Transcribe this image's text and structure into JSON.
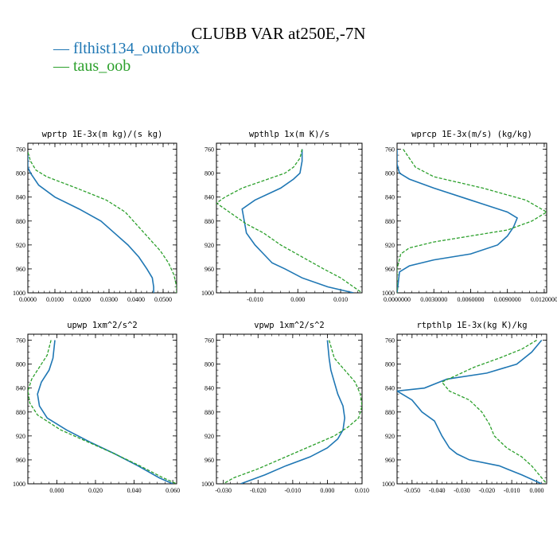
{
  "figure": {
    "title": "CLUBB VAR at250E,-7N"
  },
  "legend": [
    {
      "label": "— flthist134_outofbox",
      "color": "#1f77b4"
    },
    {
      "label": "— taus_oob",
      "color": "#2ca02c"
    }
  ],
  "colors": {
    "series_1": "#1f77b4",
    "series_2": "#2ca02c"
  },
  "chart_data": [
    {
      "type": "line",
      "title": "wprtp  1E-3x(m kg)/(s kg)",
      "xlim": [
        0.0,
        0.055
      ],
      "ylim": [
        1000,
        750
      ],
      "y_inverted": true,
      "xticks": [
        0.0,
        0.01,
        0.02,
        0.03,
        0.04,
        0.05
      ],
      "xticklabels": [
        "0.0000",
        "0.0100",
        "0.0200",
        "0.0300",
        "0.0400",
        "0.0500"
      ],
      "yticks": [
        760,
        800,
        840,
        880,
        920,
        960,
        1000
      ],
      "yticklabels": [
        "760",
        "800",
        "840",
        "880",
        "920",
        "960",
        "1000"
      ],
      "series": [
        {
          "name": "flthist134_outofbox",
          "points": [
            [
              0.0,
              765
            ],
            [
              0.0,
              790
            ],
            [
              0.001,
              800
            ],
            [
              0.004,
              820
            ],
            [
              0.01,
              840
            ],
            [
              0.019,
              860
            ],
            [
              0.027,
              880
            ],
            [
              0.032,
              900
            ],
            [
              0.037,
              920
            ],
            [
              0.041,
              940
            ],
            [
              0.044,
              960
            ],
            [
              0.046,
              975
            ],
            [
              0.0465,
              990
            ],
            [
              0.0465,
              1000
            ]
          ]
        },
        {
          "name": "taus_oob",
          "points": [
            [
              0.0,
              765
            ],
            [
              0.001,
              780
            ],
            [
              0.003,
              795
            ],
            [
              0.007,
              806
            ],
            [
              0.018,
              825
            ],
            [
              0.029,
              845
            ],
            [
              0.036,
              865
            ],
            [
              0.041,
              890
            ],
            [
              0.045,
              910
            ],
            [
              0.049,
              930
            ],
            [
              0.052,
              950
            ],
            [
              0.054,
              970
            ],
            [
              0.055,
              990
            ],
            [
              0.055,
              1000
            ]
          ]
        }
      ]
    },
    {
      "type": "line",
      "title": "wpthlp  1x(m K)/s",
      "xlim": [
        -0.019,
        0.015
      ],
      "ylim": [
        1000,
        750
      ],
      "y_inverted": true,
      "xticks": [
        -0.01,
        0.0,
        0.01
      ],
      "xticklabels": [
        "-0.010",
        "0.000",
        "0.010"
      ],
      "yticks": [
        760,
        800,
        840,
        880,
        920,
        960,
        1000
      ],
      "yticklabels": [
        "760",
        "800",
        "840",
        "880",
        "920",
        "960",
        "1000"
      ],
      "series": [
        {
          "name": "flthist134_outofbox",
          "points": [
            [
              0.001,
              760
            ],
            [
              0.001,
              780
            ],
            [
              0.0005,
              800
            ],
            [
              -0.001,
              810
            ],
            [
              -0.004,
              825
            ],
            [
              -0.01,
              845
            ],
            [
              -0.013,
              860
            ],
            [
              -0.0125,
              880
            ],
            [
              -0.012,
              900
            ],
            [
              -0.01,
              920
            ],
            [
              -0.008,
              935
            ],
            [
              -0.006,
              950
            ],
            [
              -0.003,
              960
            ],
            [
              0.001,
              975
            ],
            [
              0.007,
              990
            ],
            [
              0.013,
              1000
            ]
          ]
        },
        {
          "name": "taus_oob",
          "points": [
            [
              0.001,
              760
            ],
            [
              0.0005,
              775
            ],
            [
              -0.001,
              790
            ],
            [
              -0.003,
              800
            ],
            [
              -0.007,
              810
            ],
            [
              -0.013,
              825
            ],
            [
              -0.017,
              840
            ],
            [
              -0.019,
              850
            ],
            [
              -0.016,
              865
            ],
            [
              -0.012,
              885
            ],
            [
              -0.008,
              900
            ],
            [
              -0.004,
              920
            ],
            [
              0.001,
              940
            ],
            [
              0.006,
              960
            ],
            [
              0.01,
              975
            ],
            [
              0.015,
              1000
            ]
          ]
        }
      ]
    },
    {
      "type": "line",
      "title": "wprcp  1E-3x(m/s) (kg/kg)",
      "xlim": [
        0.0,
        0.0122
      ],
      "ylim": [
        1000,
        750
      ],
      "y_inverted": true,
      "xticks": [
        0.0,
        0.003,
        0.006,
        0.009,
        0.012
      ],
      "xticklabels": [
        "0.0000000",
        "0.0030000",
        "0.0060000",
        "0.0090000",
        "0.0120000"
      ],
      "yticks": [
        760,
        800,
        840,
        880,
        920,
        960,
        1000
      ],
      "yticklabels": [
        "760",
        "800",
        "840",
        "880",
        "920",
        "960",
        "1000"
      ],
      "series": [
        {
          "name": "flthist134_outofbox",
          "points": [
            [
              0.0,
              760
            ],
            [
              0.0,
              785
            ],
            [
              0.0002,
              800
            ],
            [
              0.001,
              810
            ],
            [
              0.003,
              825
            ],
            [
              0.006,
              845
            ],
            [
              0.009,
              865
            ],
            [
              0.0098,
              875
            ],
            [
              0.0095,
              890
            ],
            [
              0.009,
              905
            ],
            [
              0.0082,
              920
            ],
            [
              0.006,
              935
            ],
            [
              0.003,
              945
            ],
            [
              0.001,
              955
            ],
            [
              0.0002,
              965
            ],
            [
              0.0,
              1000
            ]
          ]
        },
        {
          "name": "taus_oob",
          "points": [
            [
              0.0005,
              760
            ],
            [
              0.001,
              775
            ],
            [
              0.0015,
              790
            ],
            [
              0.003,
              806
            ],
            [
              0.007,
              825
            ],
            [
              0.0105,
              845
            ],
            [
              0.0122,
              865
            ],
            [
              0.011,
              880
            ],
            [
              0.009,
              895
            ],
            [
              0.006,
              905
            ],
            [
              0.003,
              915
            ],
            [
              0.001,
              925
            ],
            [
              0.0003,
              935
            ],
            [
              0.0,
              960
            ],
            [
              0.0,
              1000
            ]
          ]
        }
      ]
    },
    {
      "type": "line",
      "title": "upwp  1xm^2/s^2",
      "xlim": [
        -0.015,
        0.062
      ],
      "ylim": [
        1000,
        750
      ],
      "y_inverted": true,
      "xticks": [
        0.0,
        0.02,
        0.04,
        0.06
      ],
      "xticklabels": [
        "0.000",
        "0.020",
        "0.040",
        "0.060"
      ],
      "yticks": [
        760,
        800,
        840,
        880,
        920,
        960,
        1000
      ],
      "yticklabels": [
        "760",
        "800",
        "840",
        "880",
        "920",
        "960",
        "1000"
      ],
      "series": [
        {
          "name": "flthist134_outofbox",
          "points": [
            [
              -0.001,
              760
            ],
            [
              -0.002,
              790
            ],
            [
              -0.004,
              810
            ],
            [
              -0.008,
              830
            ],
            [
              -0.01,
              850
            ],
            [
              -0.009,
              870
            ],
            [
              -0.005,
              890
            ],
            [
              0.005,
              910
            ],
            [
              0.017,
              930
            ],
            [
              0.03,
              950
            ],
            [
              0.042,
              970
            ],
            [
              0.053,
              990
            ],
            [
              0.06,
              1000
            ]
          ]
        },
        {
          "name": "taus_oob",
          "points": [
            [
              -0.003,
              760
            ],
            [
              -0.005,
              785
            ],
            [
              -0.009,
              805
            ],
            [
              -0.013,
              825
            ],
            [
              -0.015,
              845
            ],
            [
              -0.014,
              865
            ],
            [
              -0.01,
              885
            ],
            [
              0.002,
              910
            ],
            [
              0.016,
              930
            ],
            [
              0.03,
              950
            ],
            [
              0.043,
              970
            ],
            [
              0.055,
              990
            ],
            [
              0.062,
              1000
            ]
          ]
        }
      ]
    },
    {
      "type": "line",
      "title": "vpwp  1xm^2/s^2",
      "xlim": [
        -0.032,
        0.01
      ],
      "ylim": [
        1000,
        750
      ],
      "y_inverted": true,
      "xticks": [
        -0.03,
        -0.02,
        -0.01,
        0.0,
        0.01
      ],
      "xticklabels": [
        "-0.030",
        "-0.020",
        "-0.010",
        "0.000",
        "0.010"
      ],
      "yticks": [
        760,
        800,
        840,
        880,
        920,
        960,
        1000
      ],
      "yticklabels": [
        "760",
        "800",
        "840",
        "880",
        "920",
        "960",
        "1000"
      ],
      "series": [
        {
          "name": "flthist134_outofbox",
          "points": [
            [
              0.0,
              760
            ],
            [
              0.0005,
              790
            ],
            [
              0.001,
              810
            ],
            [
              0.002,
              830
            ],
            [
              0.003,
              850
            ],
            [
              0.0045,
              870
            ],
            [
              0.005,
              890
            ],
            [
              0.0045,
              910
            ],
            [
              0.003,
              925
            ],
            [
              0.0,
              940
            ],
            [
              -0.005,
              955
            ],
            [
              -0.012,
              970
            ],
            [
              -0.018,
              985
            ],
            [
              -0.025,
              1000
            ]
          ]
        },
        {
          "name": "taus_oob",
          "points": [
            [
              0.0005,
              760
            ],
            [
              0.002,
              790
            ],
            [
              0.005,
              810
            ],
            [
              0.008,
              830
            ],
            [
              0.0095,
              850
            ],
            [
              0.01,
              870
            ],
            [
              0.009,
              890
            ],
            [
              0.006,
              905
            ],
            [
              0.002,
              920
            ],
            [
              -0.004,
              935
            ],
            [
              -0.012,
              955
            ],
            [
              -0.02,
              975
            ],
            [
              -0.027,
              990
            ],
            [
              -0.03,
              1000
            ]
          ]
        }
      ]
    },
    {
      "type": "line",
      "title": "rtpthlp  1E-3x(kg K)/kg",
      "xlim": [
        -0.056,
        0.004
      ],
      "ylim": [
        1000,
        750
      ],
      "y_inverted": true,
      "xticks": [
        -0.05,
        -0.04,
        -0.03,
        -0.02,
        -0.01,
        0.0
      ],
      "xticklabels": [
        "-0.050",
        "-0.040",
        "-0.030",
        "-0.020",
        "-0.010",
        "0.000"
      ],
      "yticks": [
        760,
        800,
        840,
        880,
        920,
        960,
        1000
      ],
      "yticklabels": [
        "760",
        "800",
        "840",
        "880",
        "920",
        "960",
        "1000"
      ],
      "series": [
        {
          "name": "flthist134_outofbox",
          "points": [
            [
              0.002,
              760
            ],
            [
              -0.002,
              780
            ],
            [
              -0.008,
              800
            ],
            [
              -0.02,
              815
            ],
            [
              -0.036,
              825
            ],
            [
              -0.045,
              840
            ],
            [
              -0.056,
              845
            ],
            [
              -0.05,
              860
            ],
            [
              -0.046,
              880
            ],
            [
              -0.041,
              895
            ],
            [
              -0.038,
              920
            ],
            [
              -0.035,
              940
            ],
            [
              -0.032,
              950
            ],
            [
              -0.027,
              960
            ],
            [
              -0.015,
              970
            ],
            [
              -0.006,
              985
            ],
            [
              0.002,
              1000
            ]
          ]
        },
        {
          "name": "taus_oob",
          "points": [
            [
              0.0,
              760
            ],
            [
              -0.006,
              775
            ],
            [
              -0.015,
              790
            ],
            [
              -0.025,
              805
            ],
            [
              -0.038,
              830
            ],
            [
              -0.035,
              845
            ],
            [
              -0.027,
              860
            ],
            [
              -0.022,
              880
            ],
            [
              -0.019,
              900
            ],
            [
              -0.017,
              920
            ],
            [
              -0.012,
              940
            ],
            [
              -0.006,
              955
            ],
            [
              -0.002,
              970
            ],
            [
              0.001,
              985
            ],
            [
              0.004,
              1000
            ]
          ]
        }
      ]
    }
  ]
}
